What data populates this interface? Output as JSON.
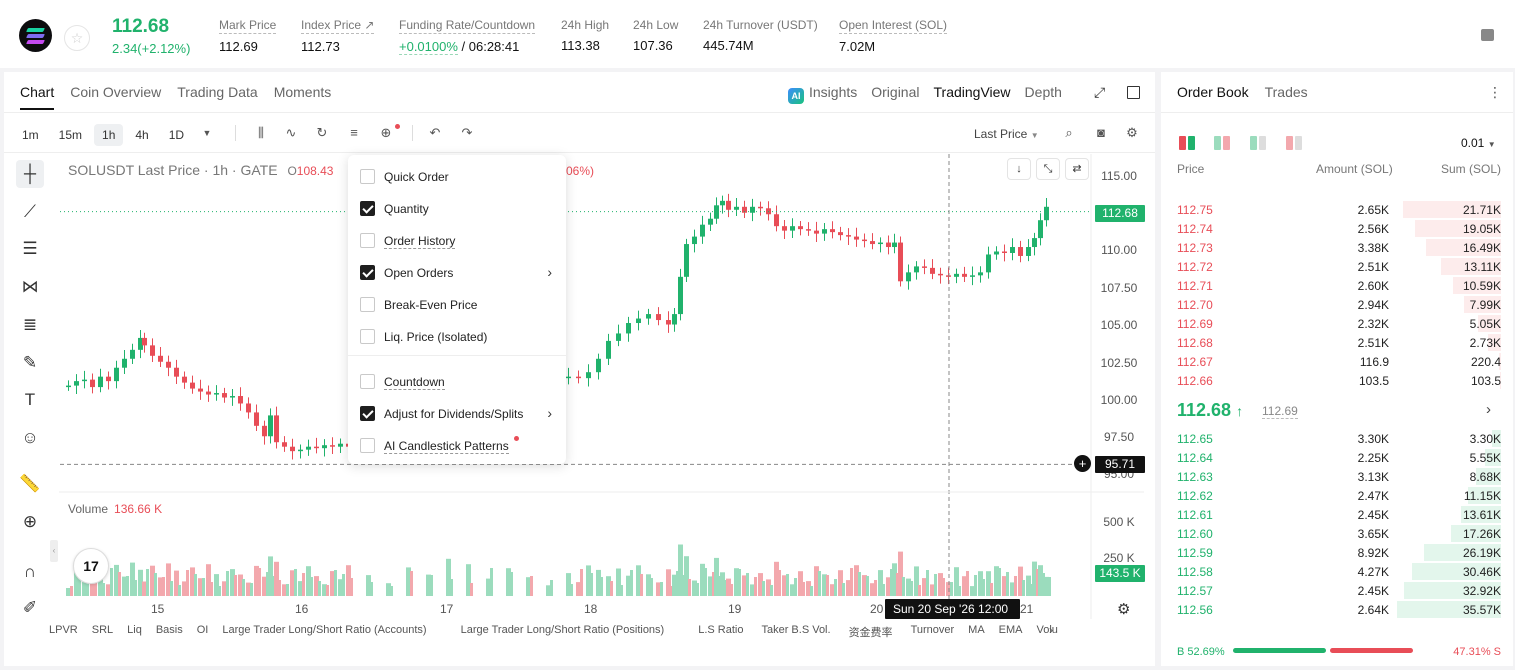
{
  "header": {
    "last_price": "112.68",
    "change": "2.34(+2.12%)",
    "stats": [
      {
        "label": "Mark Price",
        "value": "112.69"
      },
      {
        "label": "Index Price ↗",
        "value": "112.73"
      },
      {
        "label": "Funding Rate/Countdown",
        "value_green": "+0.0100%",
        "value": " / 06:28:41"
      },
      {
        "label": "24h High",
        "value": "113.38"
      },
      {
        "label": "24h Low",
        "value": "107.36"
      },
      {
        "label": "24h Turnover (USDT)",
        "value": "445.74M"
      },
      {
        "label": "Open Interest (SOL)",
        "value": "7.02M"
      }
    ]
  },
  "chart_tabs": [
    "Chart",
    "Coin Overview",
    "Trading Data",
    "Moments"
  ],
  "view_tabs": [
    "Insights",
    "Original",
    "TradingView",
    "Depth"
  ],
  "ai_badge": "AI",
  "timeframes": [
    "1m",
    "15m",
    "1h",
    "4h",
    "1D"
  ],
  "price_source": "Last Price",
  "chart_info": {
    "symbol": "SOLUSDT Last Price · 1h · GATE",
    "o_label": "O",
    "o_value": "108.43",
    "chg_tail": "06%)"
  },
  "y_ticks": [
    "115.00",
    "112.68",
    "110.00",
    "107.50",
    "105.00",
    "102.50",
    "100.00",
    "97.50",
    "95.00"
  ],
  "current_price_tag": "112.68",
  "crosshair_price": "95.71",
  "volume": {
    "label": "Volume",
    "value": "136.66 K",
    "ticks": [
      "500 K",
      "250 K"
    ],
    "current_tag": "143.5 K"
  },
  "x_ticks": [
    "15",
    "16",
    "17",
    "18",
    "19",
    "20",
    "21"
  ],
  "crosshair_time": "Sun 20 Sep '26    12:00",
  "tv_logo": "17",
  "indicators": [
    "LPVR",
    "SRL",
    "Liq",
    "Basis",
    "OI",
    "Large Trader Long/Short Ratio (Accounts)",
    "Large Trader Long/Short Ratio (Positions)",
    "L.S Ratio",
    "Taker B.S Vol.",
    "资金费率",
    "Turnover",
    "MA",
    "EMA",
    "Volu"
  ],
  "menu": {
    "items": [
      {
        "label": "Quick Order",
        "checked": false,
        "underline": false,
        "submenu": false
      },
      {
        "label": "Quantity",
        "checked": true,
        "underline": false,
        "submenu": false
      },
      {
        "label": "Order History",
        "checked": false,
        "underline": true,
        "submenu": false
      },
      {
        "label": "Open Orders",
        "checked": true,
        "underline": false,
        "submenu": true
      },
      {
        "label": "Break-Even Price",
        "checked": false,
        "underline": false,
        "submenu": false
      },
      {
        "label": "Liq. Price (Isolated)",
        "checked": false,
        "underline": false,
        "submenu": false
      },
      {
        "label": "Countdown",
        "checked": false,
        "underline": true,
        "submenu": false
      },
      {
        "label": "Adjust for Dividends/Splits",
        "checked": true,
        "underline": false,
        "submenu": true
      },
      {
        "label": "AI Candlestick Patterns",
        "checked": false,
        "underline": true,
        "submenu": false
      }
    ]
  },
  "orderbook": {
    "tabs": [
      "Order Book",
      "Trades"
    ],
    "precision": "0.01",
    "columns": [
      "Price",
      "Amount (SOL)",
      "Sum (SOL)"
    ],
    "asks": [
      {
        "price": "112.75",
        "amount": "2.65K",
        "sum": "21.71K",
        "depth": 0.93
      },
      {
        "price": "112.74",
        "amount": "2.56K",
        "sum": "19.05K",
        "depth": 0.82
      },
      {
        "price": "112.73",
        "amount": "3.38K",
        "sum": "16.49K",
        "depth": 0.71
      },
      {
        "price": "112.72",
        "amount": "2.51K",
        "sum": "13.11K",
        "depth": 0.57
      },
      {
        "price": "112.71",
        "amount": "2.60K",
        "sum": "10.59K",
        "depth": 0.46
      },
      {
        "price": "112.70",
        "amount": "2.94K",
        "sum": "7.99K",
        "depth": 0.35
      },
      {
        "price": "112.69",
        "amount": "2.32K",
        "sum": "5.05K",
        "depth": 0.22
      },
      {
        "price": "112.68",
        "amount": "2.51K",
        "sum": "2.73K",
        "depth": 0.12
      },
      {
        "price": "112.67",
        "amount": "116.9",
        "sum": "220.4",
        "depth": 0.02
      },
      {
        "price": "112.66",
        "amount": "103.5",
        "sum": "103.5",
        "depth": 0.01
      }
    ],
    "mid_price": "112.68",
    "mid_arrow": "↑",
    "mid_mark": "112.69",
    "bids": [
      {
        "price": "112.65",
        "amount": "3.30K",
        "sum": "3.30K",
        "depth": 0.09
      },
      {
        "price": "112.64",
        "amount": "2.25K",
        "sum": "5.55K",
        "depth": 0.15
      },
      {
        "price": "112.63",
        "amount": "3.13K",
        "sum": "8.68K",
        "depth": 0.24
      },
      {
        "price": "112.62",
        "amount": "2.47K",
        "sum": "11.15K",
        "depth": 0.31
      },
      {
        "price": "112.61",
        "amount": "2.45K",
        "sum": "13.61K",
        "depth": 0.38
      },
      {
        "price": "112.60",
        "amount": "3.65K",
        "sum": "17.26K",
        "depth": 0.48
      },
      {
        "price": "112.59",
        "amount": "8.92K",
        "sum": "26.19K",
        "depth": 0.73
      },
      {
        "price": "112.58",
        "amount": "4.27K",
        "sum": "30.46K",
        "depth": 0.85
      },
      {
        "price": "112.57",
        "amount": "2.45K",
        "sum": "32.92K",
        "depth": 0.92
      },
      {
        "price": "112.56",
        "amount": "2.64K",
        "sum": "35.57K",
        "depth": 0.99
      }
    ],
    "buy_ratio": "B 52.69%",
    "sell_ratio": "47.31% S",
    "buy_fraction": 0.5269
  },
  "colors": {
    "up": "#20b26c",
    "down": "#e84d57",
    "up_light": "#9bdcbd",
    "down_light": "#f3a8ad"
  }
}
